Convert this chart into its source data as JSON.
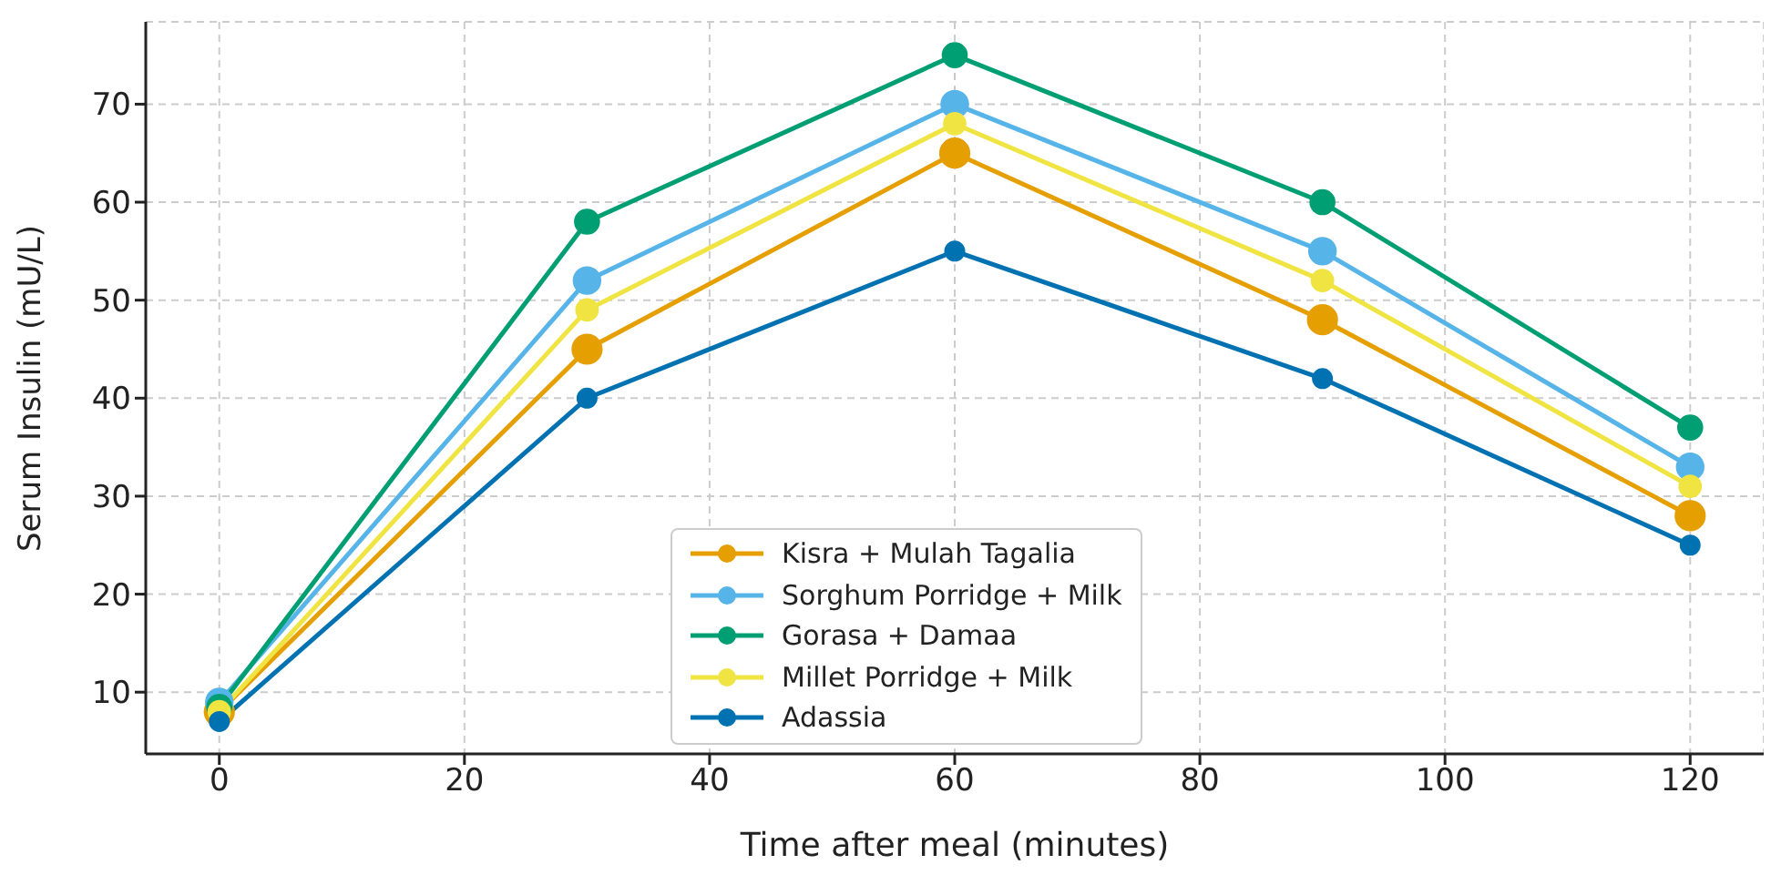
{
  "chart_data": {
    "type": "line",
    "xlabel": "Time after meal (minutes)",
    "ylabel": "Serum Insulin (mU/L)",
    "x": [
      0,
      30,
      60,
      90,
      120
    ],
    "series": [
      {
        "name": "Kisra + Mulah Tagalia",
        "color": "#e69f00",
        "values": [
          8,
          45,
          65,
          48,
          28
        ]
      },
      {
        "name": "Sorghum Porridge + Milk",
        "color": "#56b4e9",
        "values": [
          9,
          52,
          70,
          55,
          33
        ]
      },
      {
        "name": "Gorasa + Damaa",
        "color": "#009e73",
        "values": [
          8.5,
          58,
          75,
          60,
          37
        ]
      },
      {
        "name": "Millet Porridge + Milk",
        "color": "#f0e442",
        "values": [
          8,
          49,
          68,
          52,
          31
        ]
      },
      {
        "name": "Adassia",
        "color": "#0072b2",
        "values": [
          7,
          40,
          55,
          42,
          25
        ]
      }
    ],
    "xlim": [
      -6,
      126
    ],
    "xticks": [
      0,
      20,
      40,
      60,
      80,
      100,
      120
    ],
    "ylim": [
      3.7,
      78.4
    ],
    "yticks": [
      10,
      20,
      30,
      40,
      50,
      60,
      70
    ],
    "grid": true,
    "legend": "bottom",
    "marker": "circle",
    "line_style": "solid"
  }
}
